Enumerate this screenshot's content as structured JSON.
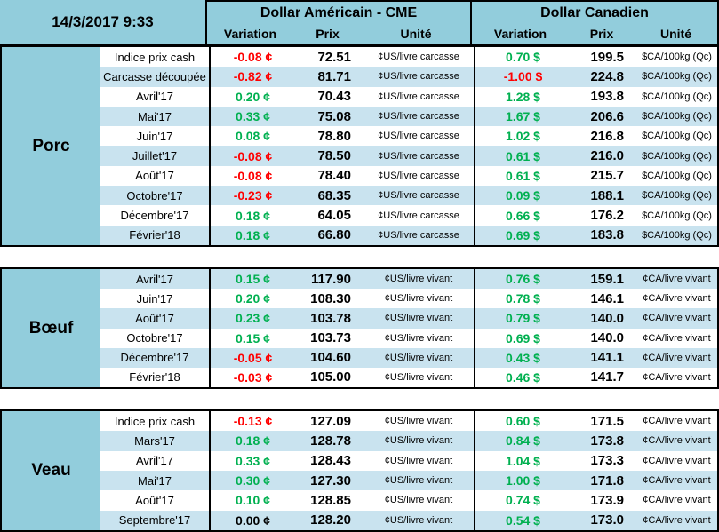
{
  "timestamp": "14/3/2017 9:33",
  "header": {
    "us_title": "Dollar Américain - CME",
    "ca_title": "Dollar Canadien",
    "variation_label": "Variation",
    "prix_label": "Prix",
    "unite_label": "Unité"
  },
  "colors": {
    "header_blue": "#92CDDC",
    "stripe_blue": "#C9E3EF",
    "positive_green": "#00B050",
    "negative_red": "#FF0000",
    "neutral_black": "#000000"
  },
  "sections": [
    {
      "name": "Porc",
      "us_unit": "¢US/livre carcasse",
      "ca_unit": "$CA/100kg (Qc)",
      "shade_first_row": false,
      "rows": [
        {
          "label": "Indice prix cash",
          "us_var": "-0.08 ¢",
          "us_prix": "72.51",
          "ca_var": "0.70 $",
          "ca_prix": "199.5"
        },
        {
          "label": "Carcasse découpée",
          "us_var": "-0.82 ¢",
          "us_prix": "81.71",
          "ca_var": "-1.00 $",
          "ca_prix": "224.8"
        },
        {
          "label": "Avril'17",
          "us_var": "0.20 ¢",
          "us_prix": "70.43",
          "ca_var": "1.28 $",
          "ca_prix": "193.8"
        },
        {
          "label": "Mai'17",
          "us_var": "0.33 ¢",
          "us_prix": "75.08",
          "ca_var": "1.67 $",
          "ca_prix": "206.6"
        },
        {
          "label": "Juin'17",
          "us_var": "0.08 ¢",
          "us_prix": "78.80",
          "ca_var": "1.02 $",
          "ca_prix": "216.8"
        },
        {
          "label": "Juillet'17",
          "us_var": "-0.08 ¢",
          "us_prix": "78.50",
          "ca_var": "0.61 $",
          "ca_prix": "216.0"
        },
        {
          "label": "Août'17",
          "us_var": "-0.08 ¢",
          "us_prix": "78.40",
          "ca_var": "0.61 $",
          "ca_prix": "215.7"
        },
        {
          "label": "Octobre'17",
          "us_var": "-0.23 ¢",
          "us_prix": "68.35",
          "ca_var": "0.09 $",
          "ca_prix": "188.1"
        },
        {
          "label": "Décembre'17",
          "us_var": "0.18 ¢",
          "us_prix": "64.05",
          "ca_var": "0.66 $",
          "ca_prix": "176.2"
        },
        {
          "label": "Février'18",
          "us_var": "0.18 ¢",
          "us_prix": "66.80",
          "ca_var": "0.69 $",
          "ca_prix": "183.8"
        }
      ]
    },
    {
      "name": "Bœuf",
      "us_unit": "¢US/livre vivant",
      "ca_unit": "¢CA/livre vivant",
      "shade_first_row": true,
      "rows": [
        {
          "label": "Avril'17",
          "us_var": "0.15 ¢",
          "us_prix": "117.90",
          "ca_var": "0.76 $",
          "ca_prix": "159.1"
        },
        {
          "label": "Juin'17",
          "us_var": "0.20 ¢",
          "us_prix": "108.30",
          "ca_var": "0.78 $",
          "ca_prix": "146.1"
        },
        {
          "label": "Août'17",
          "us_var": "0.23 ¢",
          "us_prix": "103.78",
          "ca_var": "0.79 $",
          "ca_prix": "140.0"
        },
        {
          "label": "Octobre'17",
          "us_var": "0.15 ¢",
          "us_prix": "103.73",
          "ca_var": "0.69 $",
          "ca_prix": "140.0"
        },
        {
          "label": "Décembre'17",
          "us_var": "-0.05 ¢",
          "us_prix": "104.60",
          "ca_var": "0.43 $",
          "ca_prix": "141.1"
        },
        {
          "label": "Février'18",
          "us_var": "-0.03 ¢",
          "us_prix": "105.00",
          "ca_var": "0.46 $",
          "ca_prix": "141.7"
        }
      ]
    },
    {
      "name": "Veau",
      "us_unit": "¢US/livre vivant",
      "ca_unit": "¢CA/livre vivant",
      "shade_first_row": false,
      "rows": [
        {
          "label": "Indice prix cash",
          "us_var": "-0.13 ¢",
          "us_prix": "127.09",
          "ca_var": "0.60 $",
          "ca_prix": "171.5"
        },
        {
          "label": "Mars'17",
          "us_var": "0.18 ¢",
          "us_prix": "128.78",
          "ca_var": "0.84 $",
          "ca_prix": "173.8"
        },
        {
          "label": "Avril'17",
          "us_var": "0.33 ¢",
          "us_prix": "128.43",
          "ca_var": "1.04 $",
          "ca_prix": "173.3"
        },
        {
          "label": "Mai'17",
          "us_var": "0.30 ¢",
          "us_prix": "127.30",
          "ca_var": "1.00 $",
          "ca_prix": "171.8"
        },
        {
          "label": "Août'17",
          "us_var": "0.10 ¢",
          "us_prix": "128.85",
          "ca_var": "0.74 $",
          "ca_prix": "173.9"
        },
        {
          "label": "Septembre'17",
          "us_var": "0.00 ¢",
          "us_prix": "128.20",
          "ca_var": "0.54 $",
          "ca_prix": "173.0"
        }
      ]
    }
  ]
}
